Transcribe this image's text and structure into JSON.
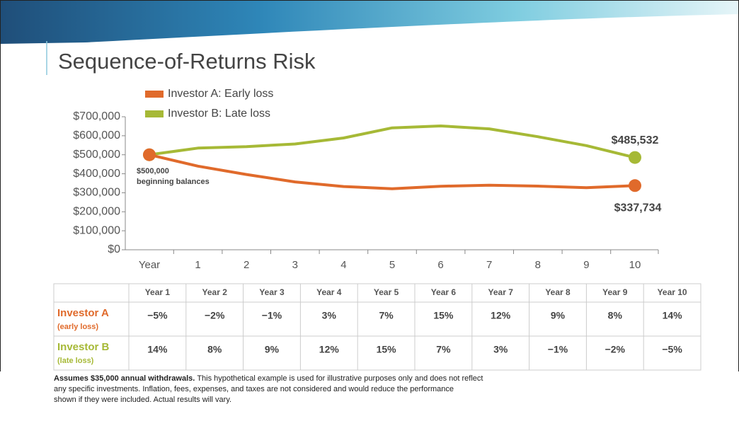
{
  "title": "Sequence-of-Returns Risk",
  "chart_data": {
    "type": "line",
    "categories": [
      "Year",
      "1",
      "2",
      "3",
      "4",
      "5",
      "6",
      "7",
      "8",
      "9",
      "10"
    ],
    "series": [
      {
        "name": "Investor A: Early loss",
        "color": "#e06a2b",
        "values": [
          500000,
          440000,
          396200,
          357238,
          332955,
          321262,
          334451,
          339585,
          335148,
          326960,
          337734
        ],
        "value_labels": [
          null,
          null,
          null,
          null,
          null,
          null,
          null,
          null,
          null,
          null,
          "$337,734"
        ]
      },
      {
        "name": "Investor B: Late loss",
        "color": "#a6b936",
        "values": [
          500000,
          535000,
          542800,
          556652,
          588450,
          641718,
          651638,
          636187,
          594825,
          547929,
          485532
        ],
        "value_labels": [
          null,
          null,
          null,
          null,
          null,
          null,
          null,
          null,
          null,
          null,
          "$485,532"
        ]
      }
    ],
    "ylim": [
      0,
      700000
    ],
    "yticks": [
      {
        "value": 0,
        "label": "$0"
      },
      {
        "value": 100000,
        "label": "$100,000"
      },
      {
        "value": 200000,
        "label": "$200,000"
      },
      {
        "value": 300000,
        "label": "$300,000"
      },
      {
        "value": 400000,
        "label": "$400,000"
      },
      {
        "value": 500000,
        "label": "$500,000"
      },
      {
        "value": 600000,
        "label": "$600,000"
      },
      {
        "value": 700000,
        "label": "$700,000"
      }
    ],
    "annotation": [
      "$500,000",
      "beginning balances"
    ],
    "legend": "top-left"
  },
  "table": {
    "header": [
      "Year 1",
      "Year 2",
      "Year 3",
      "Year 4",
      "Year 5",
      "Year 6",
      "Year 7",
      "Year 8",
      "Year 9",
      "Year 10"
    ],
    "rows": [
      {
        "label": "Investor A",
        "sub": "(early loss)",
        "cells": [
          "−5%",
          "−2%",
          "−1%",
          "3%",
          "7%",
          "15%",
          "12%",
          "9%",
          "8%",
          "14%"
        ]
      },
      {
        "label": "Investor B",
        "sub": "(late loss)",
        "cells": [
          "14%",
          "8%",
          "9%",
          "12%",
          "15%",
          "7%",
          "3%",
          "−1%",
          "−2%",
          "−5%"
        ]
      }
    ]
  },
  "footnote": {
    "bold": "Assumes $35,000 annual withdrawals.",
    "lines": [
      "This hypothetical example is used for illustrative purposes only and does not reflect",
      "any specific investments. Inflation, fees, expenses, and taxes are not considered and would reduce the performance",
      "shown if they were included. Actual results will vary."
    ]
  }
}
